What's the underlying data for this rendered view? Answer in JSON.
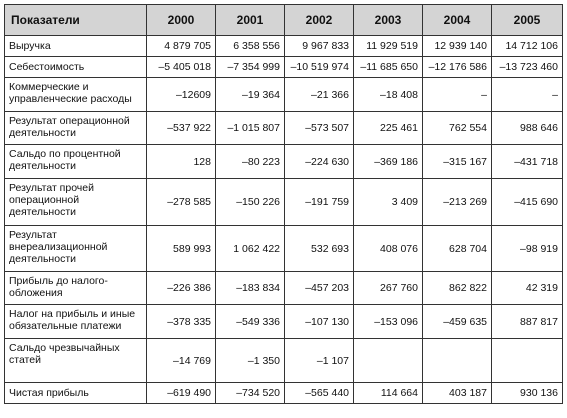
{
  "table": {
    "header": [
      "Показатели",
      "2000",
      "2001",
      "2002",
      "2003",
      "2004",
      "2005"
    ],
    "rows": [
      [
        "Выручка",
        "4 879 705",
        "6 358 556",
        "9 967 833",
        "11 929 519",
        "12 939 140",
        "14 712 106"
      ],
      [
        "Себестоимость",
        "–5 405 018",
        "–7 354 999",
        "–10 519 974",
        "–11 685 650",
        "–12 176 586",
        "–13 723 460"
      ],
      [
        "Коммерческие и управленческие расходы",
        "–12609",
        "–19 364",
        "–21 366",
        "–18 408",
        "–",
        "–"
      ],
      [
        "Результат операционной деятельности",
        "–537 922",
        "–1 015 807",
        "–573 507",
        "225 461",
        "762 554",
        "988 646"
      ],
      [
        "Сальдо по процентной деятельности",
        "128",
        "–80 223",
        "–224 630",
        "–369 186",
        "–315 167",
        "–431 718"
      ],
      [
        "Результат прочей операционной деятельности",
        "–278 585",
        "–150 226",
        "–191 759",
        "3 409",
        "–213 269",
        "–415 690"
      ],
      [
        "Результат внереализационной деятельности",
        "589 993",
        "1 062 422",
        "532 693",
        "408 076",
        "628 704",
        "–98 919"
      ],
      [
        "Прибыль до налого-обложения",
        "–226 386",
        "–183 834",
        "–457 203",
        "267 760",
        "862 822",
        "42 319"
      ],
      [
        "Налог на прибыль и иные обязательные платежи",
        "–378 335",
        "–549 336",
        "–107 130",
        "–153 096",
        "–459 635",
        "887 817"
      ],
      [
        "Сальдо чрезвычайных статей",
        "–14 769",
        "–1 350",
        "–1 107",
        "",
        "",
        ""
      ],
      [
        "Чистая прибыль",
        "–619 490",
        "–734 520",
        "–565 440",
        "114 664",
        "403 187",
        "930 136"
      ]
    ]
  }
}
